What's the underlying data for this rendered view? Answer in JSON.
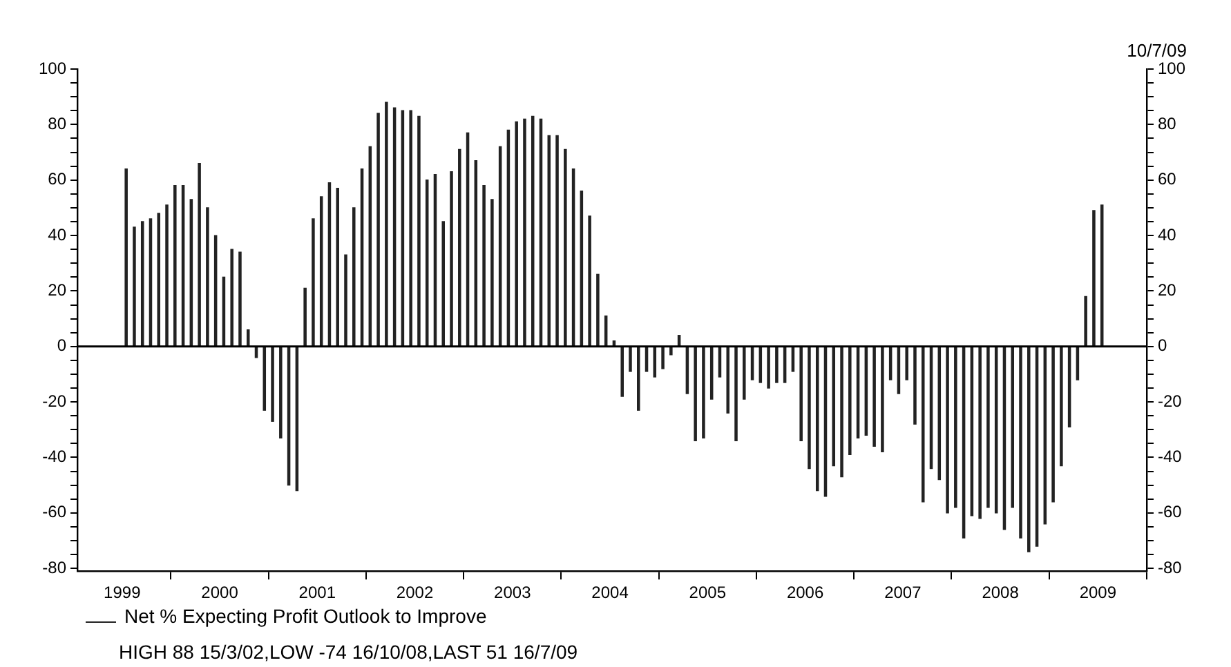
{
  "chart_data": {
    "type": "bar",
    "x": [
      "1999-07",
      "1999-08",
      "1999-09",
      "1999-10",
      "1999-11",
      "1999-12",
      "2000-01",
      "2000-02",
      "2000-03",
      "2000-04",
      "2000-05",
      "2000-06",
      "2000-07",
      "2000-08",
      "2000-09",
      "2000-10",
      "2000-11",
      "2000-12",
      "2001-01",
      "2001-02",
      "2001-03",
      "2001-04",
      "2001-05",
      "2001-06",
      "2001-07",
      "2001-08",
      "2001-09",
      "2001-10",
      "2001-11",
      "2001-12",
      "2002-01",
      "2002-02",
      "2002-03",
      "2002-04",
      "2002-05",
      "2002-06",
      "2002-07",
      "2002-08",
      "2002-09",
      "2002-10",
      "2002-11",
      "2002-12",
      "2003-01",
      "2003-02",
      "2003-03",
      "2003-04",
      "2003-05",
      "2003-06",
      "2003-07",
      "2003-08",
      "2003-09",
      "2003-10",
      "2003-11",
      "2003-12",
      "2004-01",
      "2004-02",
      "2004-03",
      "2004-04",
      "2004-05",
      "2004-06",
      "2004-07",
      "2004-08",
      "2004-09",
      "2004-10",
      "2004-11",
      "2004-12",
      "2005-01",
      "2005-02",
      "2005-03",
      "2005-04",
      "2005-05",
      "2005-06",
      "2005-07",
      "2005-08",
      "2005-09",
      "2005-10",
      "2005-11",
      "2005-12",
      "2006-01",
      "2006-02",
      "2006-03",
      "2006-04",
      "2006-05",
      "2006-06",
      "2006-07",
      "2006-08",
      "2006-09",
      "2006-10",
      "2006-11",
      "2006-12",
      "2007-01",
      "2007-02",
      "2007-03",
      "2007-04",
      "2007-05",
      "2007-06",
      "2007-07",
      "2007-08",
      "2007-09",
      "2007-10",
      "2007-11",
      "2007-12",
      "2008-01",
      "2008-02",
      "2008-03",
      "2008-04",
      "2008-05",
      "2008-06",
      "2008-07",
      "2008-08",
      "2008-09",
      "2008-10",
      "2008-11",
      "2008-12",
      "2009-01",
      "2009-02",
      "2009-03",
      "2009-04",
      "2009-05",
      "2009-06",
      "2009-07"
    ],
    "series": [
      {
        "name": "Net % Expecting Profit Outlook to Improve",
        "color": "#222222",
        "values": [
          64,
          43,
          45,
          46,
          48,
          51,
          58,
          58,
          53,
          66,
          50,
          40,
          25,
          35,
          34,
          6,
          -4,
          -23,
          -27,
          -33,
          -50,
          -52,
          21,
          46,
          54,
          59,
          57,
          33,
          50,
          64,
          72,
          84,
          88,
          86,
          85,
          85,
          83,
          60,
          62,
          45,
          63,
          71,
          77,
          67,
          58,
          53,
          72,
          78,
          81,
          82,
          83,
          82,
          76,
          76,
          71,
          64,
          56,
          47,
          26,
          11,
          2,
          -18,
          -9,
          -23,
          -9,
          -11,
          -8,
          -3,
          4,
          -17,
          -34,
          -33,
          -19,
          -11,
          -24,
          -34,
          -19,
          -12,
          -13,
          -15,
          -13,
          -13,
          -9,
          -34,
          -44,
          -52,
          -54,
          -43,
          -47,
          -39,
          -33,
          -32,
          -36,
          -38,
          -12,
          -17,
          -12,
          -28,
          -56,
          -44,
          -48,
          -60,
          -58,
          -69,
          -61,
          -62,
          -58,
          -60,
          -66,
          -58,
          -69,
          -74,
          -72,
          -64,
          -56,
          -43,
          -29,
          -12,
          18,
          49,
          51
        ]
      }
    ],
    "xlim": [
      "1999-01",
      "2010"
    ],
    "xticks": [
      {
        "value": "1999-07-01",
        "label": "1999"
      },
      {
        "value": "2000",
        "label": null
      },
      {
        "value": "2000-07-01",
        "label": "2000"
      },
      {
        "value": "2001",
        "label": null
      },
      {
        "value": "2001-07-01",
        "label": "2001"
      },
      {
        "value": "2002",
        "label": null
      },
      {
        "value": "2002-07-01",
        "label": "2002"
      },
      {
        "value": "2003",
        "label": null
      },
      {
        "value": "2003-07-01",
        "label": "2003"
      },
      {
        "value": "2004",
        "label": null
      },
      {
        "value": "2004-07-01",
        "label": "2004"
      },
      {
        "value": "2005",
        "label": null
      },
      {
        "value": "2005-07-01",
        "label": "2005"
      },
      {
        "value": "2006",
        "label": null
      },
      {
        "value": "2006-07-01",
        "label": "2006"
      },
      {
        "value": "2007",
        "label": null
      },
      {
        "value": "2007-07-01",
        "label": "2007"
      },
      {
        "value": "2008",
        "label": null
      },
      {
        "value": "2008-07-01",
        "label": "2008"
      },
      {
        "value": "2009",
        "label": null
      },
      {
        "value": "2009-07-01",
        "label": "2009"
      },
      {
        "value": "2010",
        "label": null
      }
    ],
    "ylim": [
      -81,
      100
    ],
    "yticks": [
      -80,
      {
        "value": -75,
        "label": null
      },
      {
        "value": -70,
        "label": null
      },
      {
        "value": -65,
        "label": null
      },
      -60,
      {
        "value": -55,
        "label": null
      },
      {
        "value": -50,
        "label": null
      },
      {
        "value": -45,
        "label": null
      },
      -40,
      {
        "value": -35,
        "label": null
      },
      {
        "value": -30,
        "label": null
      },
      {
        "value": -25,
        "label": null
      },
      -20,
      {
        "value": -15,
        "label": null
      },
      {
        "value": -10,
        "label": null
      },
      {
        "value": -5,
        "label": null
      },
      0,
      {
        "value": 5,
        "label": null
      },
      {
        "value": 10,
        "label": null
      },
      {
        "value": 15,
        "label": null
      },
      20,
      {
        "value": 25,
        "label": null
      },
      {
        "value": 30,
        "label": null
      },
      {
        "value": 35,
        "label": null
      },
      40,
      {
        "value": 45,
        "label": null
      },
      {
        "value": 50,
        "label": null
      },
      {
        "value": 55,
        "label": null
      },
      60,
      {
        "value": 65,
        "label": null
      },
      {
        "value": 70,
        "label": null
      },
      {
        "value": 75,
        "label": null
      },
      80,
      {
        "value": 85,
        "label": null
      },
      {
        "value": 90,
        "label": null
      },
      {
        "value": 95,
        "label": null
      },
      100
    ],
    "y2lim": [
      -81,
      100
    ],
    "y2ticks": [
      -80,
      {
        "value": -75,
        "label": null
      },
      {
        "value": -70,
        "label": null
      },
      {
        "value": -65,
        "label": null
      },
      -60,
      {
        "value": -55,
        "label": null
      },
      {
        "value": -50,
        "label": null
      },
      {
        "value": -45,
        "label": null
      },
      -40,
      {
        "value": -35,
        "label": null
      },
      {
        "value": -30,
        "label": null
      },
      {
        "value": -25,
        "label": null
      },
      -20,
      {
        "value": -15,
        "label": null
      },
      {
        "value": -10,
        "label": null
      },
      {
        "value": -5,
        "label": null
      },
      0,
      {
        "value": 5,
        "label": null
      },
      {
        "value": 10,
        "label": null
      },
      {
        "value": 15,
        "label": null
      },
      20,
      {
        "value": 25,
        "label": null
      },
      {
        "value": 30,
        "label": null
      },
      {
        "value": 35,
        "label": null
      },
      40,
      {
        "value": 45,
        "label": null
      },
      {
        "value": 50,
        "label": null
      },
      {
        "value": 55,
        "label": null
      },
      60,
      {
        "value": 65,
        "label": null
      },
      {
        "value": 70,
        "label": null
      },
      {
        "value": 75,
        "label": null
      },
      80,
      {
        "value": 85,
        "label": null
      },
      {
        "value": 90,
        "label": null
      },
      {
        "value": 95,
        "label": null
      },
      100
    ],
    "ref_lines": [
      {
        "axis": "y",
        "value": 0,
        "color": "#000000"
      }
    ],
    "grid": false,
    "legend": "bottom left",
    "annotations": [
      "10/7/09",
      "HIGH 88 15/3/02,LOW -74 16/10/08,LAST 51 16/7/09"
    ]
  }
}
